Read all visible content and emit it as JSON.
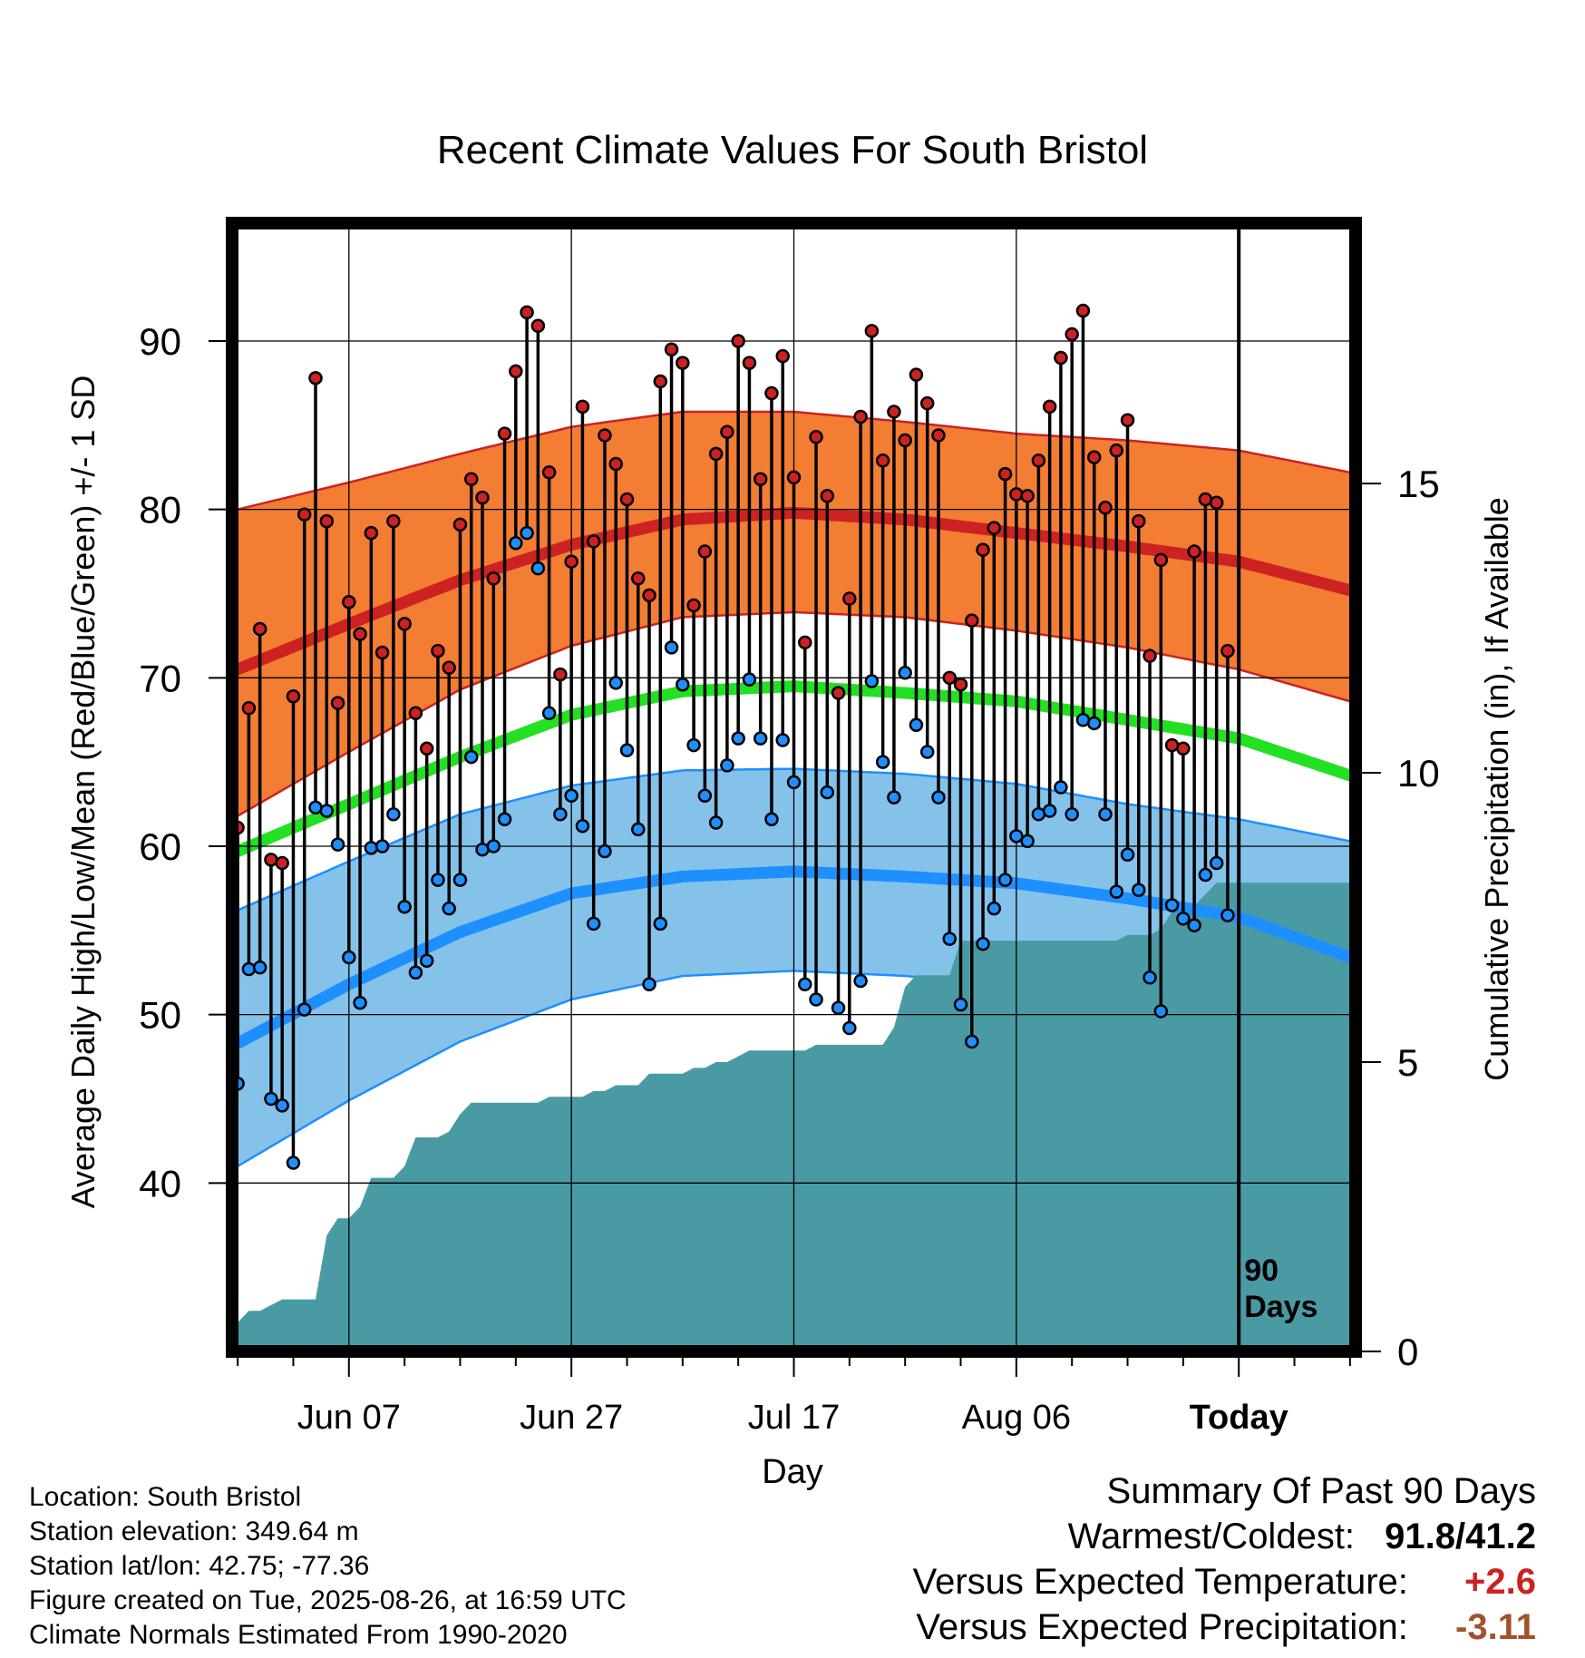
{
  "chart_data": {
    "type": "line",
    "title": "Recent Climate Values For South Bristol",
    "xlabel": "Day",
    "ylabel": "Average Daily High/Low/Mean (Red/Blue/Green) +/- 1 SD",
    "y2label": "Cumulative Precipitation (in), If Available",
    "ylim": [
      30,
      97
    ],
    "y2lim": [
      0,
      19.5
    ],
    "yticks": [
      "40",
      "50",
      "60",
      "70",
      "80",
      "90"
    ],
    "y2ticks": [
      "0",
      "5",
      "10",
      "15"
    ],
    "xticks": [
      "Jun 07",
      "Jun 27",
      "Jul 17",
      "Aug 06",
      "Today"
    ],
    "xtick_days": [
      10,
      30,
      50,
      70,
      90
    ],
    "xlim": [
      -0.5,
      100.5
    ],
    "today_marker_label": "90 Days",
    "grid": true,
    "days": [
      0,
      1,
      2,
      3,
      4,
      5,
      6,
      7,
      8,
      9,
      10,
      11,
      12,
      13,
      14,
      15,
      16,
      17,
      18,
      19,
      20,
      21,
      22,
      23,
      24,
      25,
      26,
      27,
      28,
      29,
      30,
      31,
      32,
      33,
      34,
      35,
      36,
      37,
      38,
      39,
      40,
      41,
      42,
      43,
      44,
      45,
      46,
      47,
      48,
      49,
      50,
      51,
      52,
      53,
      54,
      55,
      56,
      57,
      58,
      59,
      60,
      61,
      62,
      63,
      64,
      65,
      66,
      67,
      68,
      69,
      70,
      71,
      72,
      73,
      74,
      75,
      76,
      77,
      78,
      79,
      80,
      81,
      82,
      83,
      84,
      85,
      86,
      87,
      88,
      89
    ],
    "daily_high": [
      61.1,
      68.2,
      72.9,
      59.2,
      59.0,
      68.9,
      79.7,
      87.8,
      79.3,
      68.5,
      74.5,
      72.6,
      78.6,
      71.5,
      79.3,
      73.2,
      67.9,
      65.8,
      71.6,
      70.6,
      79.1,
      81.8,
      80.7,
      75.9,
      84.5,
      88.2,
      91.7,
      90.9,
      82.2,
      70.2,
      76.9,
      86.1,
      78.1,
      84.4,
      82.7,
      80.6,
      75.9,
      74.9,
      87.6,
      89.5,
      88.7,
      74.3,
      77.5,
      83.3,
      84.6,
      90.0,
      88.7,
      81.8,
      86.9,
      89.1,
      81.9,
      72.1,
      84.3,
      80.8,
      69.1,
      74.7,
      85.5,
      90.6,
      82.9,
      85.8,
      84.1,
      88.0,
      86.3,
      84.4,
      70.0,
      69.6,
      73.4,
      77.6,
      78.9,
      82.1,
      80.9,
      80.8,
      82.9,
      86.1,
      89.0,
      90.4,
      91.8,
      83.1,
      80.1,
      83.5,
      85.3,
      79.3,
      71.3,
      77.0,
      66.0,
      65.8,
      77.5,
      80.6,
      80.4,
      71.6
    ],
    "daily_low": [
      45.9,
      52.7,
      52.8,
      45.0,
      44.6,
      41.2,
      50.3,
      62.3,
      62.1,
      60.1,
      53.4,
      50.7,
      59.9,
      60.0,
      61.9,
      56.4,
      52.5,
      53.2,
      58.0,
      56.3,
      58.0,
      65.3,
      59.8,
      60.0,
      61.6,
      78.0,
      78.6,
      76.5,
      67.9,
      61.9,
      63.0,
      61.2,
      55.4,
      59.7,
      69.7,
      65.7,
      61.0,
      51.8,
      55.4,
      71.8,
      69.6,
      66.0,
      63.0,
      61.4,
      64.8,
      66.4,
      69.9,
      66.4,
      61.6,
      66.3,
      63.8,
      51.8,
      50.9,
      63.2,
      50.4,
      49.2,
      52.0,
      69.8,
      65.0,
      62.9,
      70.3,
      67.2,
      65.6,
      62.9,
      54.5,
      50.6,
      48.4,
      54.2,
      56.3,
      58.0,
      60.6,
      60.3,
      61.9,
      62.1,
      63.5,
      61.9,
      67.5,
      67.3,
      61.9,
      57.3,
      59.5,
      57.4,
      52.2,
      50.2,
      56.5,
      55.7,
      55.3,
      58.3,
      59.0,
      55.9
    ],
    "series": [
      {
        "name": "Red",
        "sd_label": "+/- 1 SD",
        "days": [
          0,
          10,
          20,
          30,
          40,
          50,
          60,
          70,
          80,
          90,
          100
        ],
        "mean": [
          70.5,
          73.2,
          75.8,
          77.9,
          79.4,
          79.8,
          79.4,
          78.6,
          77.8,
          76.9,
          75.2
        ],
        "upper": [
          80.0,
          81.6,
          83.3,
          84.9,
          85.8,
          85.8,
          85.2,
          84.5,
          84.1,
          83.5,
          82.2
        ],
        "lower": [
          61.8,
          65.6,
          69.3,
          71.9,
          73.6,
          73.9,
          73.6,
          72.8,
          71.8,
          70.5,
          68.6
        ],
        "color": "#cc2222",
        "band_color": "#f27d33"
      },
      {
        "name": "Green",
        "days": [
          0,
          10,
          20,
          30,
          40,
          50,
          60,
          70,
          80,
          90,
          100
        ],
        "mean": [
          59.7,
          62.5,
          65.3,
          67.8,
          69.2,
          69.5,
          69.1,
          68.6,
          67.5,
          66.4,
          64.2
        ],
        "color": "#22e022"
      },
      {
        "name": "Blue",
        "sd_label": "+/- 1 SD",
        "days": [
          0,
          10,
          20,
          30,
          40,
          50,
          60,
          70,
          80,
          90,
          100
        ],
        "mean": [
          48.3,
          51.8,
          54.9,
          57.2,
          58.2,
          58.5,
          58.2,
          57.8,
          56.9,
          55.8,
          53.4
        ],
        "upper": [
          56.2,
          59.1,
          61.9,
          63.6,
          64.5,
          64.6,
          64.3,
          63.7,
          62.5,
          61.6,
          60.3
        ],
        "lower": [
          41.0,
          44.9,
          48.4,
          50.9,
          52.3,
          52.6,
          52.3,
          51.6,
          50.4,
          48.9,
          46.7
        ],
        "color": "#1e8fff",
        "band_color": "#85c2ea"
      }
    ],
    "precip": {
      "days": [
        0,
        1,
        2,
        3,
        4,
        5,
        6,
        7,
        8,
        9,
        10,
        11,
        12,
        13,
        14,
        15,
        16,
        17,
        18,
        19,
        20,
        21,
        22,
        23,
        24,
        25,
        26,
        27,
        28,
        29,
        30,
        31,
        32,
        33,
        34,
        35,
        36,
        37,
        38,
        39,
        40,
        41,
        42,
        43,
        44,
        45,
        46,
        47,
        48,
        49,
        50,
        51,
        52,
        53,
        54,
        55,
        56,
        57,
        58,
        59,
        60,
        61,
        62,
        63,
        64,
        65,
        66,
        67,
        68,
        69,
        70,
        71,
        72,
        73,
        74,
        75,
        76,
        77,
        78,
        79,
        80,
        81,
        82,
        83,
        84,
        85,
        86,
        87,
        88,
        89,
        100
      ],
      "cumulative": [
        0.5,
        0.7,
        0.7,
        0.8,
        0.9,
        0.9,
        0.9,
        0.9,
        2.0,
        2.3,
        2.3,
        2.5,
        3.0,
        3.0,
        3.0,
        3.2,
        3.7,
        3.7,
        3.7,
        3.8,
        4.1,
        4.3,
        4.3,
        4.3,
        4.3,
        4.3,
        4.3,
        4.3,
        4.4,
        4.4,
        4.4,
        4.4,
        4.5,
        4.5,
        4.6,
        4.6,
        4.6,
        4.8,
        4.8,
        4.8,
        4.8,
        4.9,
        4.9,
        5.0,
        5.0,
        5.1,
        5.2,
        5.2,
        5.2,
        5.2,
        5.2,
        5.2,
        5.3,
        5.3,
        5.3,
        5.3,
        5.3,
        5.3,
        5.3,
        5.6,
        6.3,
        6.5,
        6.5,
        6.5,
        6.5,
        7.1,
        7.1,
        7.1,
        7.1,
        7.1,
        7.1,
        7.1,
        7.1,
        7.1,
        7.1,
        7.1,
        7.1,
        7.1,
        7.1,
        7.1,
        7.2,
        7.2,
        7.2,
        7.3,
        7.6,
        7.7,
        7.7,
        7.9,
        8.1,
        8.1,
        8.1
      ]
    }
  },
  "info": {
    "location": "Location: South Bristol",
    "elevation": "Station elevation: 349.64 m",
    "latlon": "Station lat/lon: 42.75; -77.36",
    "created": "Figure created on Tue, 2025-08-26, at 16:59 UTC",
    "normals": "Climate Normals Estimated From 1990-2020"
  },
  "summary": {
    "heading": "Summary Of Past 90 Days",
    "warmest_label": "Warmest/Coldest:",
    "warmest_value": "91.8/41.2",
    "temp_label": "Versus Expected Temperature:",
    "temp_value": "+2.6",
    "temp_color": "#cc2222",
    "precip_label": "Versus Expected Precipitation:",
    "precip_value": "-3.11",
    "precip_color": "#a0522d"
  },
  "colors": {
    "precip_fill": "#4a9aa4",
    "frame": "#000000",
    "grid": "#000000"
  }
}
